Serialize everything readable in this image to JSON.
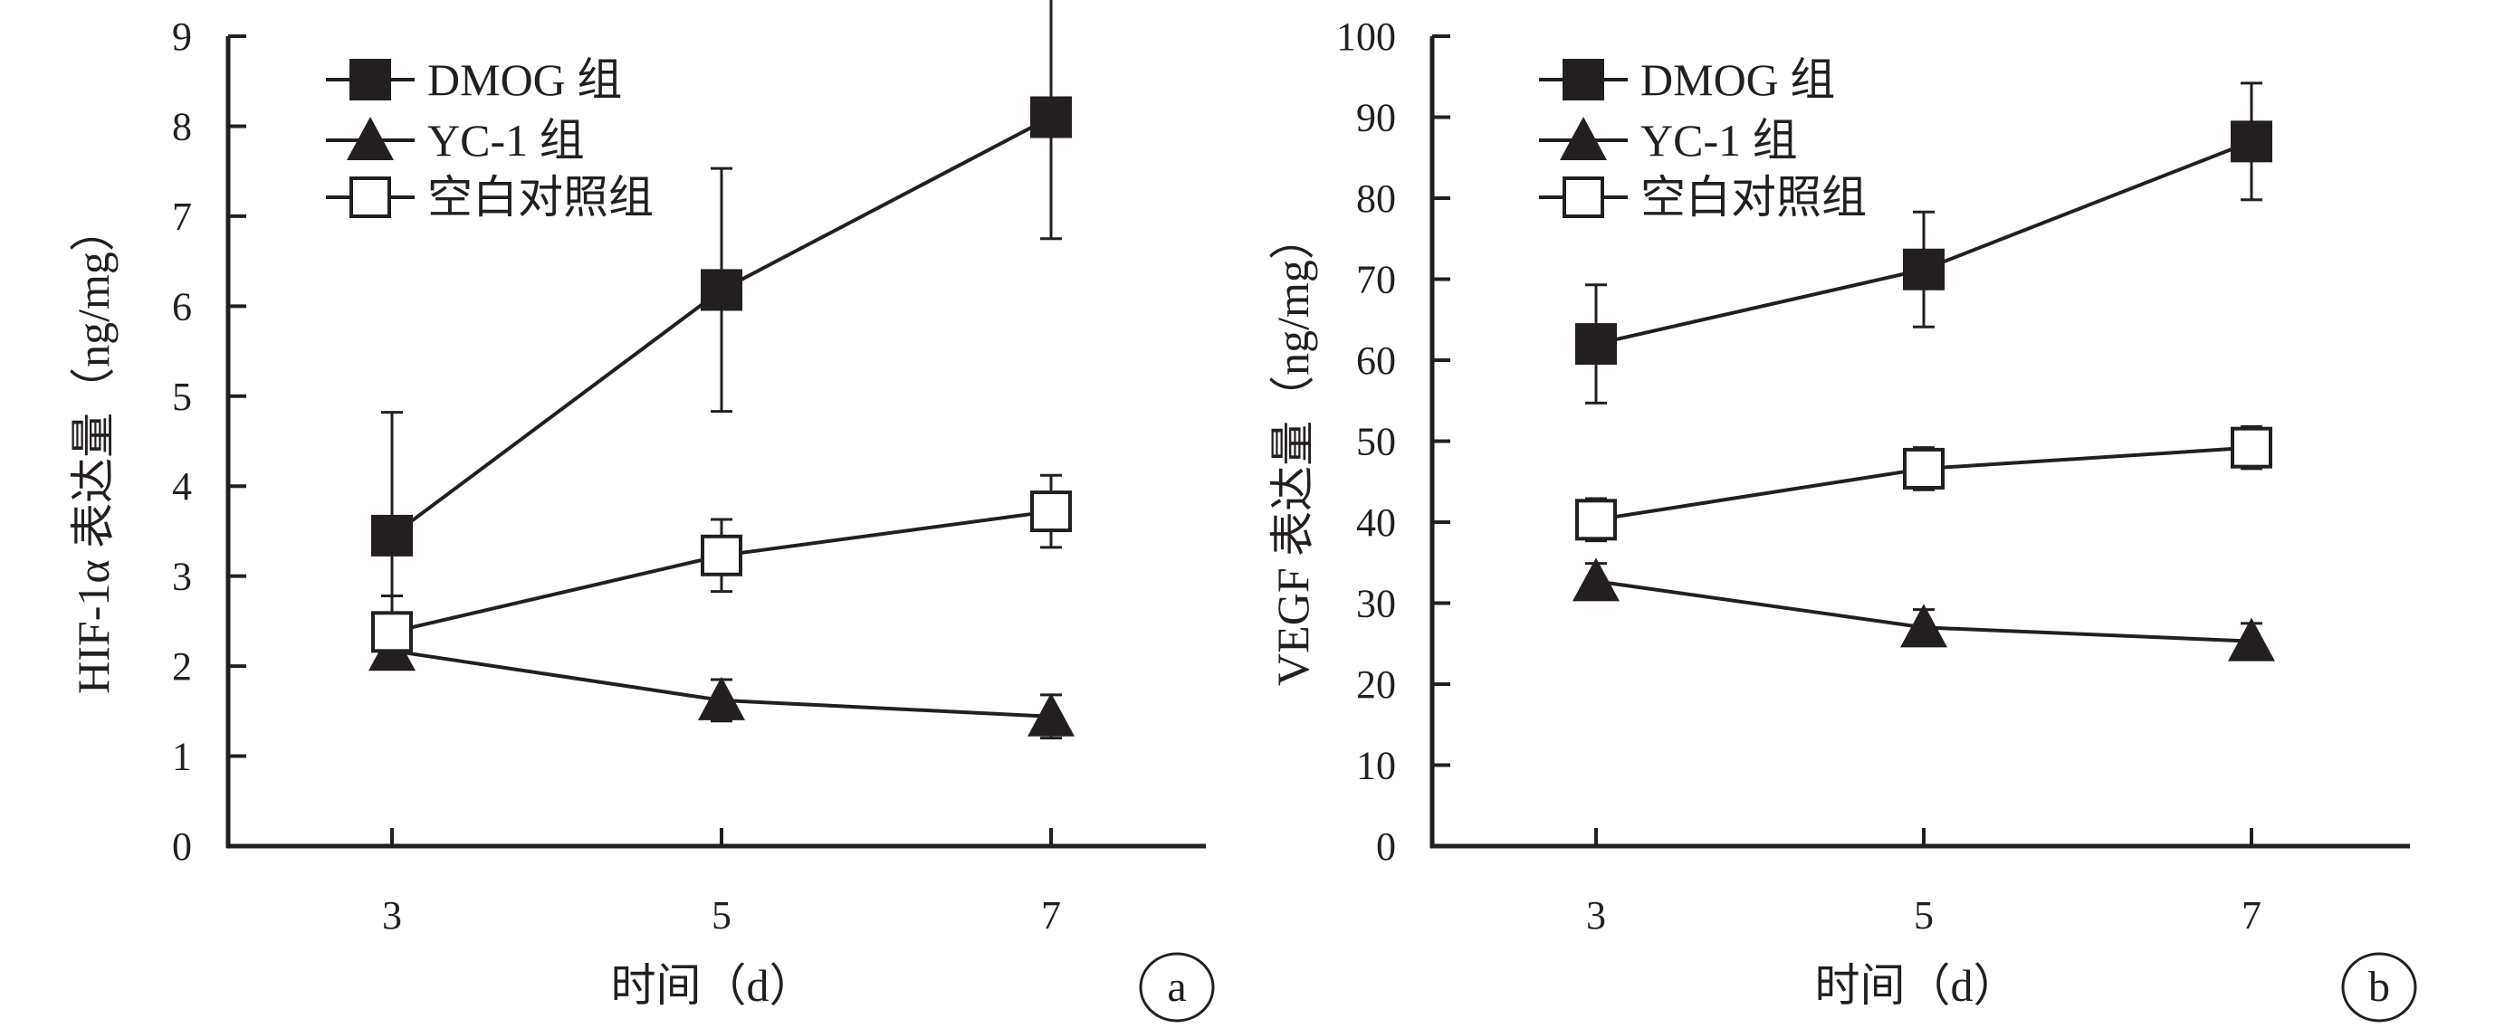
{
  "chart_data": [
    {
      "type": "line",
      "panel_label": "a",
      "xlabel": "时间（d）",
      "ylabel": "HIF-1α 表达量（ng/mg）",
      "x": [
        3,
        5,
        7
      ],
      "x_ticks": [
        "3",
        "5",
        "7"
      ],
      "ylim": [
        0,
        9
      ],
      "y_ticks": [
        "0",
        "1",
        "2",
        "3",
        "4",
        "5",
        "6",
        "7",
        "8",
        "9"
      ],
      "grid": false,
      "legend_position": "top-left",
      "series": [
        {
          "name": "DMOG 组",
          "marker": "filled-square",
          "values": [
            3.45,
            6.18,
            8.1
          ],
          "error": [
            1.37,
            1.35,
            1.35
          ]
        },
        {
          "name": "YC-1 组",
          "marker": "filled-triangle",
          "values": [
            2.17,
            1.62,
            1.44
          ],
          "error": [
            0.15,
            0.23,
            0.24
          ]
        },
        {
          "name": "空白对照组",
          "marker": "open-square",
          "values": [
            2.38,
            3.23,
            3.72
          ],
          "error": [
            0.4,
            0.4,
            0.4
          ]
        }
      ]
    },
    {
      "type": "line",
      "panel_label": "b",
      "xlabel": "时间（d）",
      "ylabel": "VEGF 表达量（ng/mg）",
      "x": [
        3,
        5,
        7
      ],
      "x_ticks": [
        "3",
        "5",
        "7"
      ],
      "ylim": [
        0,
        100
      ],
      "y_ticks": [
        "0",
        "10",
        "20",
        "30",
        "40",
        "50",
        "60",
        "70",
        "80",
        "90",
        "100"
      ],
      "grid": false,
      "legend_position": "top-left",
      "series": [
        {
          "name": "DMOG 组",
          "marker": "filled-square",
          "values": [
            62,
            71.2,
            87
          ],
          "error": [
            7.3,
            7.1,
            7.2
          ]
        },
        {
          "name": "YC-1 组",
          "marker": "filled-triangle",
          "values": [
            32.7,
            27,
            25.3
          ],
          "error": [
            2.2,
            2.2,
            2.2
          ]
        },
        {
          "name": "空白对照组",
          "marker": "open-square",
          "values": [
            40.3,
            46.6,
            49.2
          ],
          "error": [
            2.6,
            2.6,
            2.6
          ]
        }
      ]
    }
  ]
}
